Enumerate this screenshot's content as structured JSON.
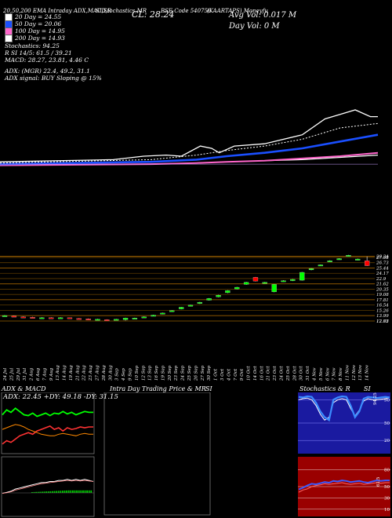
{
  "header": {
    "top_left": "20,50,200  EMA Intraday ADX,MACD,R",
    "top_center": "SI,Stochastics,MR",
    "cl_label": "CL: 28.24",
    "script_code": "BSE Code 540756",
    "company": "(KAARTAPS) Moneyfu",
    "avg_vol": "Avg Vol: 0.017 M",
    "day_vol": "Day Vol: 0   M"
  },
  "legend": [
    {
      "label": "20  Day = 24.55",
      "color": "#ffffff"
    },
    {
      "label": "50  Day = 20.06",
      "color": "#1a4fff"
    },
    {
      "label": "100  Day = 14.95",
      "color": "#ff66cc"
    },
    {
      "label": "200  Day = 14.93",
      "color": "#ffffff"
    }
  ],
  "stats": {
    "stochastics": "Stochastics: 94.25",
    "r": "R                   SI 14/5: 61.5 / 39.21",
    "macd": "MACD: 28.27,  23.81,  4.46   C",
    "adx": "ADX:                         (MGR) 22.4,  49.2,  31.1",
    "adx_signal": "ADX  signal:                           BUY Sloping @ 15%"
  },
  "panels": {
    "adx_title": "ADX  & MACD",
    "adx_values": "ADX: 22.45  +DY: 49.18  -DY: 31.15",
    "intraday_title": "Intra  Day Trading Price  & MR",
    "si_title_1": "SI",
    "stoch_title": "Stochastics & R",
    "si_title_2": "SI"
  },
  "colors": {
    "bull": "#00ff00",
    "bear": "#ff0000",
    "ema20": "#ffffff",
    "ema50": "#1a4fff",
    "ema100": "#ff66cc",
    "ema200": "#ffffff",
    "level_line": "#b87000",
    "rsi_bg": "#9a0000",
    "stoch_bg": "#1a1aa0"
  },
  "chart_data": {
    "type": "candlestick",
    "dates": [
      "24 Jul",
      "25 Jul",
      "29 Jul",
      "31 Jul",
      "2 Aug",
      "6 Aug",
      "7 Aug",
      "9 Aug",
      "13 Aug",
      "14 Aug",
      "19 Aug",
      "21 Aug",
      "22 Aug",
      "23 Aug",
      "27 Aug",
      "28 Aug",
      "30 Aug",
      "3 Sep",
      "4 Sep",
      "9 Sep",
      "10 Sep",
      "12 Sep",
      "13 Sep",
      "16 Sep",
      "19 Sep",
      "20 Sep",
      "23 Sep",
      "24 Sep",
      "25 Sep",
      "26 Sep",
      "27 Sep",
      "30 Sep",
      "1 Oct",
      "3 Oct",
      "4 Oct",
      "7 Oct",
      "9 Oct",
      "10 Oct",
      "14 Oct",
      "16 Oct",
      "21 Oct",
      "23 Oct",
      "24 Oct",
      "25 Oct",
      "28 Oct",
      "30 Oct",
      "31 Oct",
      "4 Nov",
      "5 Nov",
      "6 Nov",
      "7 Nov",
      "8 Nov",
      "11 Nov",
      "12 Nov",
      "13 Nov",
      "14 Nov"
    ],
    "candles": [
      {
        "i": 0,
        "o": 13.9,
        "c": 14.0,
        "h": 14.1,
        "l": 13.8
      },
      {
        "i": 2,
        "o": 13.9,
        "c": 13.8,
        "h": 14.0,
        "l": 13.7
      },
      {
        "i": 4,
        "o": 13.7,
        "c": 13.6,
        "h": 13.8,
        "l": 13.5
      },
      {
        "i": 6,
        "o": 13.6,
        "c": 13.5,
        "h": 13.7,
        "l": 13.4
      },
      {
        "i": 8,
        "o": 13.5,
        "c": 13.5,
        "h": 13.6,
        "l": 13.4
      },
      {
        "i": 10,
        "o": 13.5,
        "c": 13.4,
        "h": 13.6,
        "l": 13.3
      },
      {
        "i": 12,
        "o": 13.4,
        "c": 13.5,
        "h": 13.6,
        "l": 13.3
      },
      {
        "i": 14,
        "o": 13.5,
        "c": 13.4,
        "h": 13.5,
        "l": 13.3
      },
      {
        "i": 16,
        "o": 13.3,
        "c": 13.2,
        "h": 13.4,
        "l": 13.1
      },
      {
        "i": 18,
        "o": 13.2,
        "c": 13.1,
        "h": 13.3,
        "l": 13.0
      },
      {
        "i": 20,
        "o": 13.1,
        "c": 13.1,
        "h": 13.2,
        "l": 13.0
      },
      {
        "i": 22,
        "o": 13.0,
        "c": 12.9,
        "h": 13.1,
        "l": 12.8
      },
      {
        "i": 24,
        "o": 13.0,
        "c": 13.1,
        "h": 13.2,
        "l": 12.9
      },
      {
        "i": 26,
        "o": 13.0,
        "c": 13.4,
        "h": 13.5,
        "l": 12.8
      },
      {
        "i": 28,
        "o": 13.3,
        "c": 13.4,
        "h": 13.5,
        "l": 13.2
      },
      {
        "i": 30,
        "o": 13.6,
        "c": 13.7,
        "h": 13.8,
        "l": 13.5
      },
      {
        "i": 32,
        "o": 14.0,
        "c": 14.1,
        "h": 14.2,
        "l": 13.9
      },
      {
        "i": 34,
        "o": 14.4,
        "c": 14.6,
        "h": 14.7,
        "l": 14.3
      },
      {
        "i": 36,
        "o": 15.0,
        "c": 15.2,
        "h": 15.3,
        "l": 14.9
      },
      {
        "i": 38,
        "o": 15.6,
        "c": 16.0,
        "h": 16.1,
        "l": 15.5
      },
      {
        "i": 40,
        "o": 16.3,
        "c": 16.5,
        "h": 16.6,
        "l": 16.2
      },
      {
        "i": 42,
        "o": 16.9,
        "c": 17.2,
        "h": 17.3,
        "l": 16.8
      },
      {
        "i": 44,
        "o": 17.7,
        "c": 18.1,
        "h": 18.2,
        "l": 17.6
      },
      {
        "i": 46,
        "o": 18.5,
        "c": 18.9,
        "h": 19.0,
        "l": 18.4
      },
      {
        "i": 48,
        "o": 19.5,
        "c": 20.0,
        "h": 20.1,
        "l": 19.4
      },
      {
        "i": 50,
        "o": 20.4,
        "c": 20.8,
        "h": 20.9,
        "l": 20.3
      },
      {
        "i": 52,
        "o": 21.5,
        "c": 22.0,
        "h": 22.1,
        "l": 21.4
      },
      {
        "i": 54,
        "o": 23.2,
        "c": 22.3,
        "h": 23.3,
        "l": 22.2
      },
      {
        "i": 56,
        "o": 21.8,
        "c": 22.0,
        "h": 22.1,
        "l": 21.7
      },
      {
        "i": 58,
        "o": 19.7,
        "c": 21.5,
        "h": 21.6,
        "l": 19.6
      },
      {
        "i": 60,
        "o": 22.2,
        "c": 22.4,
        "h": 22.5,
        "l": 22.1
      },
      {
        "i": 62,
        "o": 22.4,
        "c": 22.7,
        "h": 22.8,
        "l": 22.3
      },
      {
        "i": 64,
        "o": 22.5,
        "c": 24.4,
        "h": 24.5,
        "l": 22.4
      },
      {
        "i": 66,
        "o": 25.0,
        "c": 25.3,
        "h": 25.4,
        "l": 24.9
      },
      {
        "i": 68,
        "o": 26.0,
        "c": 26.2,
        "h": 26.3,
        "l": 25.9
      },
      {
        "i": 70,
        "o": 27.0,
        "c": 27.2,
        "h": 27.3,
        "l": 26.9
      },
      {
        "i": 72,
        "o": 27.5,
        "c": 27.7,
        "h": 27.8,
        "l": 27.4
      },
      {
        "i": 74,
        "o": 28.3,
        "c": 28.5,
        "h": 28.6,
        "l": 28.2
      },
      {
        "i": 76,
        "o": 27.4,
        "c": 27.6,
        "h": 27.7,
        "l": 27.3
      },
      {
        "i": 78,
        "o": 27.2,
        "c": 26.0,
        "h": 28.2,
        "l": 25.9
      }
    ],
    "price_levels": [
      "28.24",
      "27.98",
      "26.73",
      "25.44",
      "24.17",
      "22.9",
      "21.62",
      "20.35",
      "19.08",
      "17.81",
      "16.54",
      "15.26",
      "13.99",
      "12.72",
      "12.65"
    ],
    "ylim": [
      12.5,
      29.5
    ],
    "ema_overlay": {
      "x_range": [
        0,
        100
      ],
      "price": [
        [
          0,
          4
        ],
        [
          30,
          6
        ],
        [
          38,
          9
        ],
        [
          44,
          10
        ],
        [
          48,
          9
        ],
        [
          53,
          18
        ],
        [
          56,
          16
        ],
        [
          58,
          12
        ],
        [
          62,
          18
        ],
        [
          70,
          20
        ],
        [
          80,
          28
        ],
        [
          86,
          42
        ],
        [
          90,
          46
        ],
        [
          94,
          50
        ],
        [
          98,
          44
        ],
        [
          100,
          44
        ]
      ],
      "ema20": [
        [
          0,
          3
        ],
        [
          40,
          6
        ],
        [
          52,
          10
        ],
        [
          60,
          14
        ],
        [
          70,
          18
        ],
        [
          80,
          24
        ],
        [
          90,
          34
        ],
        [
          100,
          38
        ]
      ],
      "ema50": [
        [
          0,
          2
        ],
        [
          40,
          4
        ],
        [
          52,
          6
        ],
        [
          60,
          9
        ],
        [
          70,
          12
        ],
        [
          80,
          16
        ],
        [
          90,
          22
        ],
        [
          100,
          28
        ]
      ],
      "ema100": [
        [
          0,
          1
        ],
        [
          40,
          2
        ],
        [
          52,
          3
        ],
        [
          60,
          4
        ],
        [
          70,
          5
        ],
        [
          80,
          7
        ],
        [
          90,
          9
        ],
        [
          100,
          12
        ]
      ],
      "ema200": [
        [
          0,
          1
        ],
        [
          40,
          2
        ],
        [
          52,
          3
        ],
        [
          60,
          4
        ],
        [
          70,
          5
        ],
        [
          80,
          6
        ],
        [
          90,
          8
        ],
        [
          100,
          10
        ]
      ]
    },
    "adx_panel": {
      "adx": [
        28,
        30,
        32,
        34,
        33,
        31,
        28,
        26,
        24,
        22,
        21,
        20,
        20,
        22,
        23,
        22,
        21,
        20,
        22,
        23,
        22,
        22
      ],
      "pdy": [
        46,
        52,
        49,
        54,
        50,
        46,
        45,
        48,
        44,
        46,
        48,
        45,
        48,
        47,
        50,
        47,
        49,
        46,
        48,
        50,
        49,
        49
      ],
      "mdy": [
        10,
        14,
        12,
        16,
        20,
        22,
        24,
        22,
        26,
        28,
        30,
        32,
        28,
        30,
        26,
        30,
        28,
        29,
        31,
        30,
        31,
        31
      ],
      "macd": [
        1,
        2,
        3,
        5,
        6,
        7,
        8,
        9,
        10,
        11,
        11,
        12,
        12,
        13,
        13,
        14,
        13,
        14,
        13,
        14,
        13,
        12
      ],
      "signal": [
        1,
        1.5,
        2.5,
        4,
        5,
        6,
        7,
        8,
        9,
        10,
        10.5,
        11,
        11.5,
        12,
        12.5,
        13,
        12.5,
        13,
        12.5,
        13,
        12.5,
        12
      ]
    },
    "stoch_panel": {
      "ticks": [
        "90",
        "50",
        "20"
      ],
      "stoch": [
        95,
        94,
        96,
        95,
        85,
        70,
        60,
        55,
        90,
        94,
        96,
        95,
        80,
        60,
        70,
        92,
        95,
        94,
        93,
        94,
        95,
        94
      ],
      "r": [
        90,
        92,
        93,
        90,
        80,
        65,
        55,
        60,
        85,
        90,
        92,
        90,
        75,
        62,
        72,
        88,
        92,
        90,
        90,
        91,
        92,
        94
      ],
      "value_label": "94.25"
    },
    "rsi_panel": {
      "ticks": [
        "80",
        "50",
        "30",
        "10"
      ],
      "si": [
        45,
        48,
        52,
        55,
        54,
        56,
        58,
        57,
        60,
        59,
        61,
        60,
        58,
        59,
        60,
        58,
        57,
        59,
        61,
        60,
        61,
        61
      ],
      "r": [
        40,
        44,
        46,
        50,
        52,
        53,
        55,
        54,
        55,
        56,
        57,
        55,
        54,
        55,
        56,
        54,
        55,
        56,
        57,
        56,
        57,
        57
      ],
      "value_label": "61.5"
    }
  }
}
